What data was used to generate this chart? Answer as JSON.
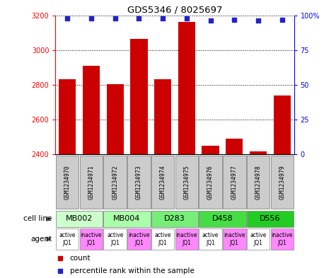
{
  "title": "GDS5346 / 8025697",
  "samples": [
    "GSM1234970",
    "GSM1234971",
    "GSM1234972",
    "GSM1234973",
    "GSM1234974",
    "GSM1234975",
    "GSM1234976",
    "GSM1234977",
    "GSM1234978",
    "GSM1234979"
  ],
  "bar_values": [
    2830,
    2910,
    2805,
    3065,
    2830,
    3160,
    2450,
    2490,
    2415,
    2740
  ],
  "percentile_values": [
    98,
    98,
    98,
    98,
    98,
    98,
    96,
    97,
    96,
    97
  ],
  "ylim_left": [
    2400,
    3200
  ],
  "ylim_right": [
    0,
    100
  ],
  "yticks_left": [
    2400,
    2600,
    2800,
    3000,
    3200
  ],
  "yticks_right": [
    0,
    25,
    50,
    75,
    100
  ],
  "bar_color": "#cc0000",
  "dot_color": "#2222cc",
  "grid_ticks": [
    2600,
    2800,
    3000
  ],
  "cell_lines": [
    {
      "label": "MB002",
      "cols": [
        0,
        1
      ],
      "color": "#ccffcc"
    },
    {
      "label": "MB004",
      "cols": [
        2,
        3
      ],
      "color": "#aaffaa"
    },
    {
      "label": "D283",
      "cols": [
        4,
        5
      ],
      "color": "#77ee77"
    },
    {
      "label": "D458",
      "cols": [
        6,
        7
      ],
      "color": "#44dd44"
    },
    {
      "label": "D556",
      "cols": [
        8,
        9
      ],
      "color": "#22cc22"
    }
  ],
  "agents": [
    "active\nJQ1",
    "inactive\nJQ1",
    "active\nJQ1",
    "inactive\nJQ1",
    "active\nJQ1",
    "inactive\nJQ1",
    "active\nJQ1",
    "inactive\nJQ1",
    "active\nJQ1",
    "inactive\nJQ1"
  ],
  "agent_active_color": "#ffffff",
  "agent_inactive_color": "#ff88ff",
  "sample_box_color": "#cccccc",
  "sample_box_edge": "#888888"
}
